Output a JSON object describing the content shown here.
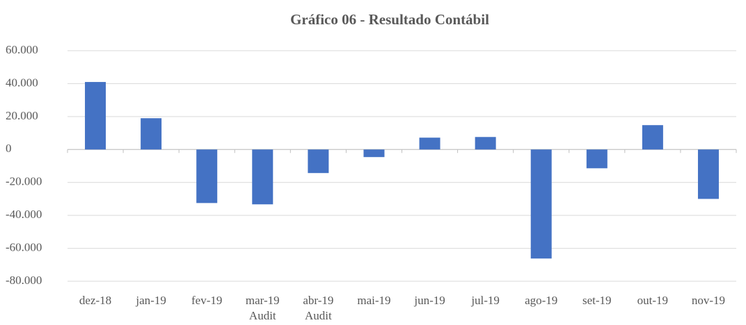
{
  "chart_data": {
    "type": "bar",
    "title": "Gráfico 06 - Resultado Contábil",
    "categories": [
      "dez-18",
      "jan-19",
      "fev-19",
      [
        "mar-19",
        "Audit"
      ],
      [
        "abr-19",
        "Audit"
      ],
      "mai-19",
      "jun-19",
      "jul-19",
      "ago-19",
      "set-19",
      "out-19",
      "nov-19"
    ],
    "values": [
      41000,
      19000,
      -32500,
      -33300,
      -14300,
      -4600,
      7200,
      7600,
      -66200,
      -11400,
      14800,
      -30000
    ],
    "color": "#4472c4",
    "ylim": [
      -80000,
      60000
    ],
    "yticks": [
      {
        "value": -80000,
        "label": "-80.000"
      },
      {
        "value": -60000,
        "label": "-60.000"
      },
      {
        "value": -40000,
        "label": "-40.000"
      },
      {
        "value": -20000,
        "label": "-20.000"
      },
      0,
      {
        "value": 20000,
        "label": "20.000"
      },
      {
        "value": 40000,
        "label": "40.000"
      },
      {
        "value": 60000,
        "label": "60.000"
      }
    ],
    "grid": true
  }
}
